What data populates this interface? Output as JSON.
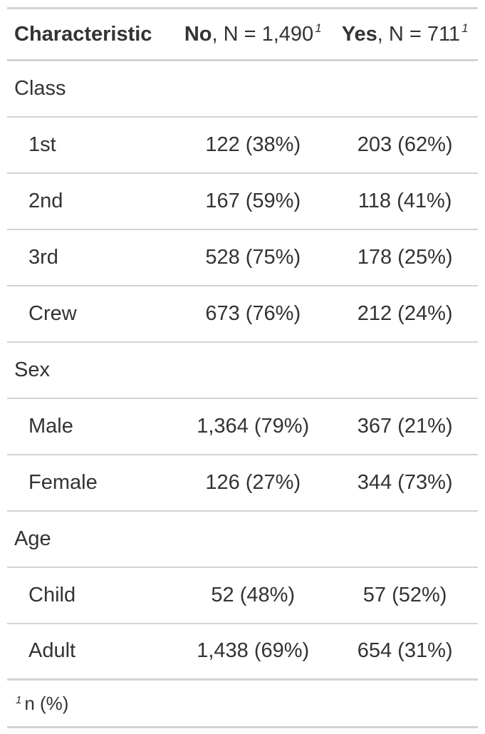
{
  "header": {
    "characteristic": "Characteristic",
    "col_no_label": "No",
    "col_no_n": ", N = 1,490",
    "col_yes_label": "Yes",
    "col_yes_n": ", N = 711",
    "footnote_mark": "1"
  },
  "groups": {
    "class": "Class",
    "sex": "Sex",
    "age": "Age"
  },
  "rows": [
    {
      "label": "1st",
      "no": "122 (38%)",
      "yes": "203 (62%)"
    },
    {
      "label": "2nd",
      "no": "167 (59%)",
      "yes": "118 (41%)"
    },
    {
      "label": "3rd",
      "no": "528 (75%)",
      "yes": "178 (25%)"
    },
    {
      "label": "Crew",
      "no": "673 (76%)",
      "yes": "212 (24%)"
    },
    {
      "label": "Male",
      "no": "1,364 (79%)",
      "yes": "367 (21%)"
    },
    {
      "label": "Female",
      "no": "126 (27%)",
      "yes": "344 (73%)"
    },
    {
      "label": "Child",
      "no": "52 (48%)",
      "yes": "57 (52%)"
    },
    {
      "label": "Adult",
      "no": "1,438 (69%)",
      "yes": "654 (31%)"
    }
  ],
  "footnote": {
    "mark": "1",
    "text": "n (%)"
  }
}
